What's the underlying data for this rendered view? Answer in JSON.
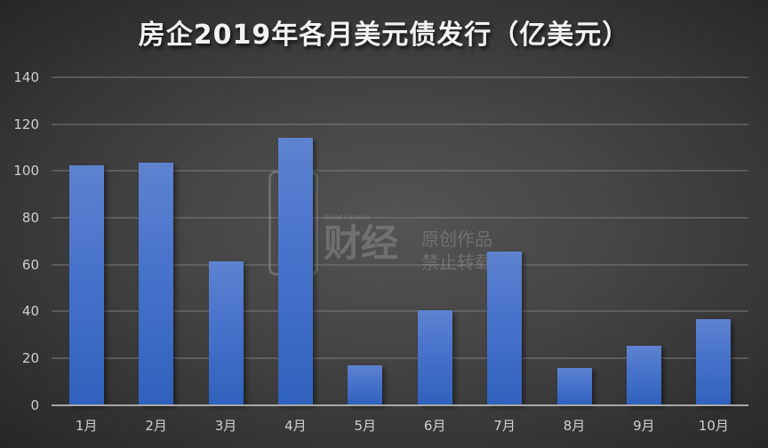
{
  "title": "房企2019年各月美元债发行（亿美元）",
  "watermark": {
    "logo_en": "Bread Finance",
    "logo_cn": "财经",
    "line1": "原创作品",
    "line2": "禁止转载"
  },
  "y_axis": {
    "ticks": [
      "0",
      "20",
      "40",
      "60",
      "80",
      "100",
      "120",
      "140"
    ]
  },
  "x_axis": {
    "ticks": [
      "1月",
      "2月",
      "3月",
      "4月",
      "5月",
      "6月",
      "7月",
      "8月",
      "9月",
      "10月"
    ]
  },
  "colors": {
    "bar": "#4472C4",
    "background": "#404040",
    "text": "#D0D0D0"
  },
  "chart_data": {
    "type": "bar",
    "title": "房企2019年各月美元债发行（亿美元）",
    "xlabel": "",
    "ylabel": "",
    "categories": [
      "1月",
      "2月",
      "3月",
      "4月",
      "5月",
      "6月",
      "7月",
      "8月",
      "9月",
      "10月"
    ],
    "values": [
      102.2,
      103.7,
      61.3,
      114.3,
      16.8,
      40.3,
      65.4,
      15.7,
      25.2,
      36.5
    ],
    "ylim": [
      0,
      140
    ],
    "yticks": [
      0,
      20,
      40,
      60,
      80,
      100,
      120,
      140
    ],
    "grid": true,
    "legend": null
  }
}
